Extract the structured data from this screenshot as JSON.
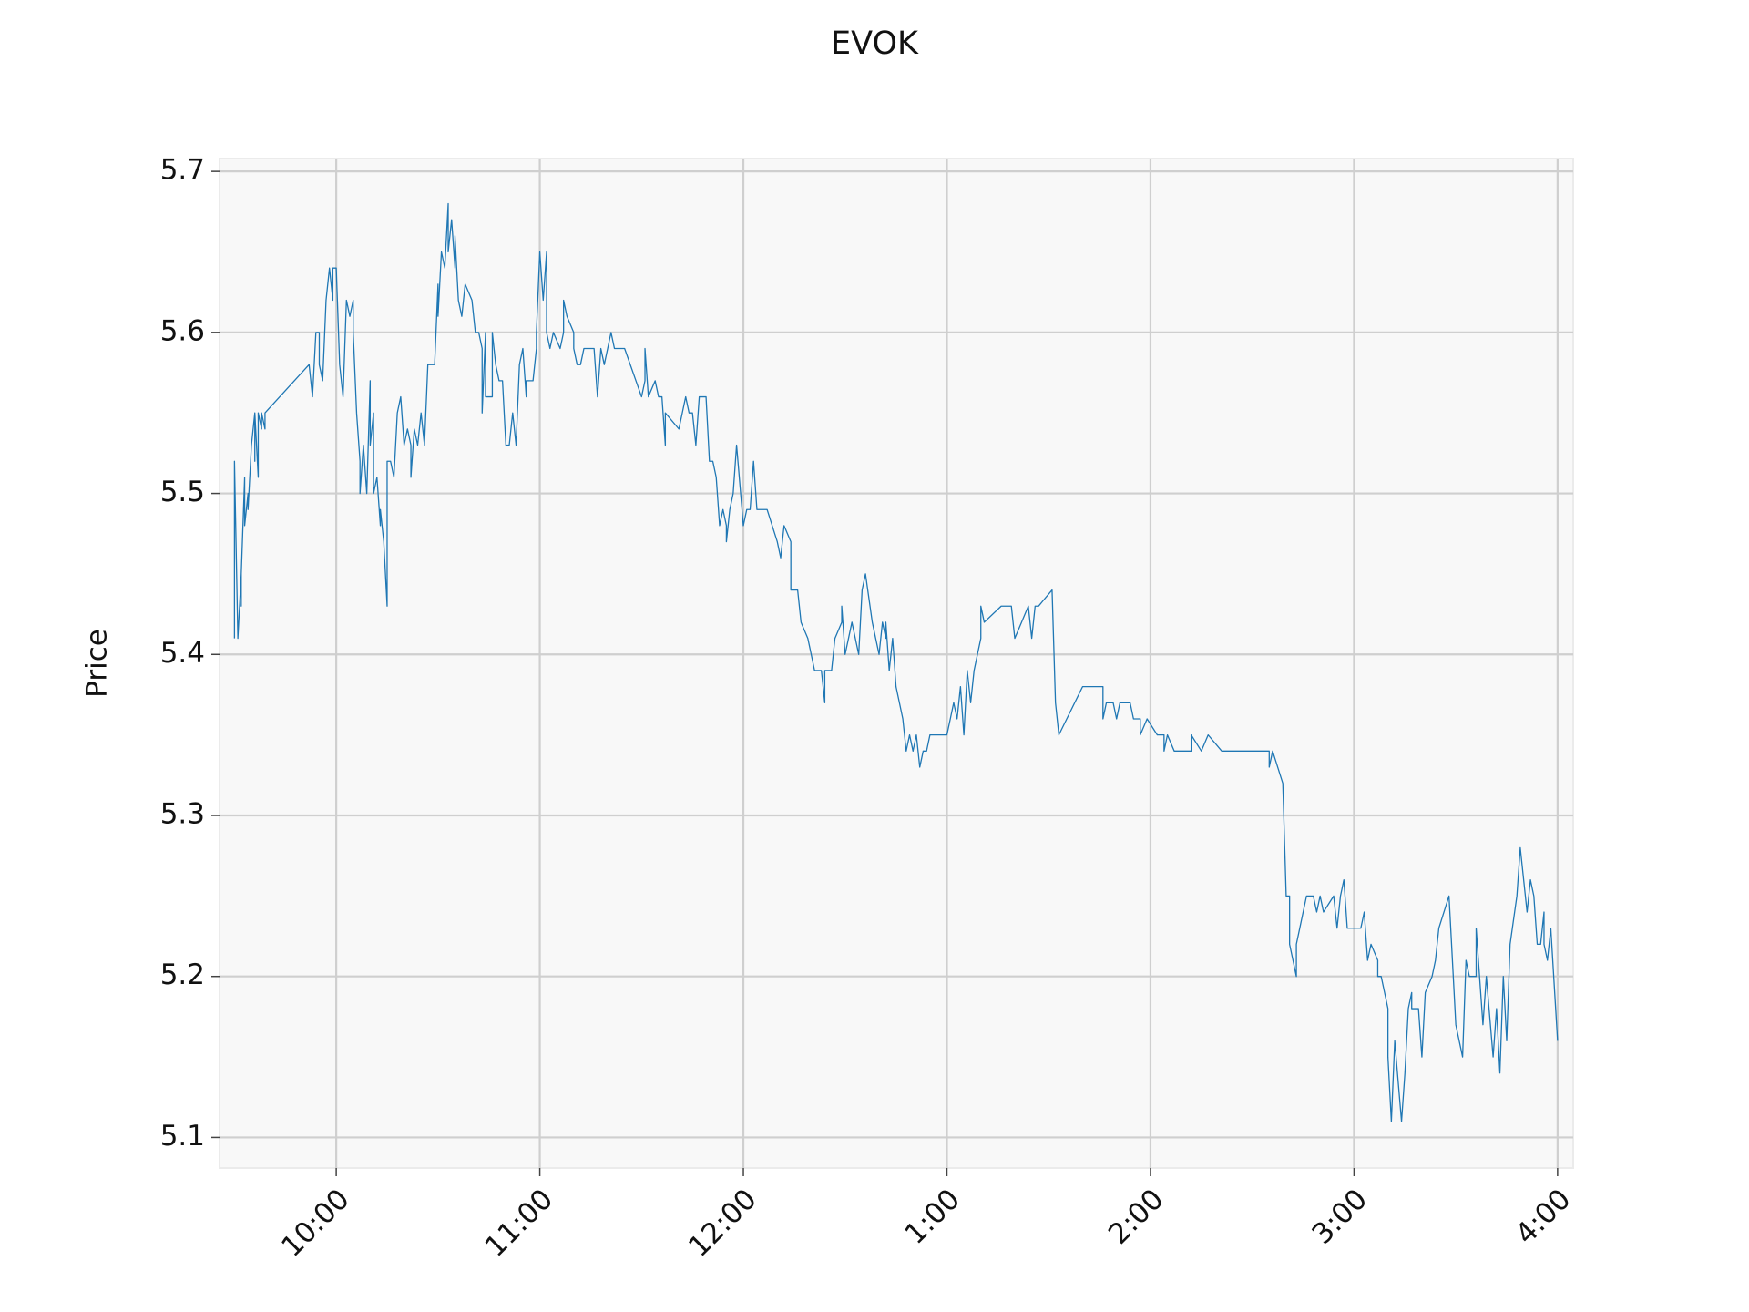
{
  "chart_data": {
    "type": "line",
    "title": "EVOK",
    "ylabel": "Price",
    "color": "#1f77b4",
    "grid": true,
    "xlim": [
      565.6,
      964.6
    ],
    "ylim": [
      5.081,
      5.708
    ],
    "xticks": [
      {
        "value": 600,
        "label": "10:00"
      },
      {
        "value": 660,
        "label": "11:00"
      },
      {
        "value": 720,
        "label": "12:00"
      },
      {
        "value": 780,
        "label": "1:00"
      },
      {
        "value": 840,
        "label": "2:00"
      },
      {
        "value": 900,
        "label": "3:00"
      },
      {
        "value": 960,
        "label": "4:00"
      }
    ],
    "yticks": [
      5.1,
      5.2,
      5.3,
      5.4,
      5.5,
      5.6,
      5.7
    ],
    "x": [
      570,
      570,
      571,
      572,
      572,
      572,
      573,
      573,
      574,
      574,
      575,
      576,
      576,
      576,
      577,
      577,
      578,
      578,
      579,
      579,
      592,
      593,
      594,
      595,
      595,
      596,
      597,
      598,
      599,
      599,
      600,
      601,
      602,
      603,
      604,
      605,
      605,
      606,
      607,
      607,
      608,
      609,
      610,
      610,
      611,
      611,
      612,
      613,
      613,
      614,
      615,
      615,
      616,
      617,
      618,
      619,
      620,
      621,
      622,
      622,
      623,
      624,
      625,
      626,
      627,
      629,
      630,
      630,
      631,
      632,
      633,
      633,
      634,
      635,
      635,
      636,
      637,
      638,
      640,
      641,
      642,
      643,
      643,
      644,
      644,
      646,
      646,
      647,
      648,
      649,
      650,
      651,
      652,
      653,
      654,
      655,
      656,
      656,
      658,
      659,
      659,
      660,
      661,
      662,
      662,
      663,
      664,
      666,
      667,
      667,
      668,
      670,
      670,
      671,
      672,
      673,
      676,
      677,
      678,
      679,
      680,
      681,
      682,
      685,
      690,
      691,
      691,
      692,
      694,
      695,
      696,
      697,
      697,
      701,
      702,
      703,
      704,
      705,
      706,
      707,
      709,
      710,
      711,
      712,
      713,
      714,
      715,
      715,
      716,
      717,
      718,
      720,
      721,
      722,
      723,
      724,
      727,
      730,
      731,
      732,
      734,
      734,
      736,
      737,
      739,
      740,
      741,
      743,
      744,
      744,
      746,
      747,
      749,
      749,
      750,
      750,
      752,
      753,
      754,
      755,
      756,
      758,
      760,
      761,
      762,
      762,
      763,
      764,
      765,
      766,
      767,
      768,
      769,
      770,
      771,
      772,
      773,
      774,
      775,
      780,
      781,
      782,
      783,
      784,
      785,
      786,
      787,
      788,
      789,
      790,
      790,
      791,
      796,
      799,
      800,
      802,
      804,
      805,
      806,
      807,
      811,
      812,
      813,
      820,
      826,
      826,
      827,
      829,
      830,
      831,
      834,
      835,
      837,
      837,
      839,
      842,
      844,
      844,
      845,
      847,
      852,
      852,
      855,
      857,
      861,
      875,
      875,
      876,
      879,
      880,
      881,
      881,
      882,
      883,
      883,
      884,
      885,
      886,
      888,
      889,
      890,
      891,
      894,
      895,
      896,
      897,
      898,
      902,
      903,
      904,
      905,
      907,
      907,
      908,
      910,
      910,
      911,
      912,
      914,
      915,
      916,
      917,
      917,
      919,
      920,
      920,
      921,
      923,
      924,
      925,
      928,
      930,
      932,
      933,
      934,
      936,
      936,
      938,
      939,
      941,
      942,
      943,
      944,
      945,
      946,
      948,
      949,
      951,
      952,
      953,
      954,
      955,
      956,
      956,
      957,
      958,
      960
    ],
    "values": [
      5.41,
      5.52,
      5.41,
      5.45,
      5.43,
      5.45,
      5.51,
      5.48,
      5.5,
      5.49,
      5.53,
      5.55,
      5.52,
      5.55,
      5.51,
      5.55,
      5.54,
      5.55,
      5.54,
      5.55,
      5.58,
      5.56,
      5.6,
      5.6,
      5.58,
      5.57,
      5.62,
      5.64,
      5.62,
      5.64,
      5.64,
      5.58,
      5.56,
      5.62,
      5.61,
      5.62,
      5.6,
      5.55,
      5.52,
      5.5,
      5.53,
      5.5,
      5.57,
      5.53,
      5.55,
      5.5,
      5.51,
      5.48,
      5.49,
      5.47,
      5.43,
      5.52,
      5.52,
      5.51,
      5.55,
      5.56,
      5.53,
      5.54,
      5.53,
      5.51,
      5.54,
      5.53,
      5.55,
      5.53,
      5.58,
      5.58,
      5.63,
      5.61,
      5.65,
      5.64,
      5.68,
      5.65,
      5.67,
      5.64,
      5.66,
      5.62,
      5.61,
      5.63,
      5.62,
      5.6,
      5.6,
      5.59,
      5.55,
      5.6,
      5.56,
      5.56,
      5.6,
      5.58,
      5.57,
      5.57,
      5.53,
      5.53,
      5.55,
      5.53,
      5.58,
      5.59,
      5.56,
      5.57,
      5.57,
      5.59,
      5.6,
      5.65,
      5.62,
      5.65,
      5.6,
      5.59,
      5.6,
      5.59,
      5.6,
      5.62,
      5.61,
      5.6,
      5.59,
      5.58,
      5.58,
      5.59,
      5.59,
      5.56,
      5.59,
      5.58,
      5.59,
      5.6,
      5.59,
      5.59,
      5.56,
      5.57,
      5.59,
      5.56,
      5.57,
      5.56,
      5.56,
      5.53,
      5.55,
      5.54,
      5.55,
      5.56,
      5.55,
      5.55,
      5.53,
      5.56,
      5.56,
      5.52,
      5.52,
      5.51,
      5.48,
      5.49,
      5.48,
      5.47,
      5.49,
      5.5,
      5.53,
      5.48,
      5.49,
      5.49,
      5.52,
      5.49,
      5.49,
      5.47,
      5.46,
      5.48,
      5.47,
      5.44,
      5.44,
      5.42,
      5.41,
      5.4,
      5.39,
      5.39,
      5.37,
      5.39,
      5.39,
      5.41,
      5.42,
      5.43,
      5.4,
      5.4,
      5.42,
      5.41,
      5.4,
      5.44,
      5.45,
      5.42,
      5.4,
      5.42,
      5.41,
      5.42,
      5.39,
      5.41,
      5.38,
      5.37,
      5.36,
      5.34,
      5.35,
      5.34,
      5.35,
      5.33,
      5.34,
      5.34,
      5.35,
      5.35,
      5.36,
      5.37,
      5.36,
      5.38,
      5.35,
      5.39,
      5.37,
      5.39,
      5.4,
      5.41,
      5.43,
      5.42,
      5.43,
      5.43,
      5.41,
      5.42,
      5.43,
      5.41,
      5.43,
      5.43,
      5.44,
      5.37,
      5.35,
      5.38,
      5.38,
      5.36,
      5.37,
      5.37,
      5.36,
      5.37,
      5.37,
      5.36,
      5.36,
      5.35,
      5.36,
      5.35,
      5.35,
      5.34,
      5.35,
      5.34,
      5.34,
      5.35,
      5.34,
      5.35,
      5.34,
      5.34,
      5.33,
      5.34,
      5.32,
      5.25,
      5.25,
      5.22,
      5.21,
      5.2,
      5.22,
      5.23,
      5.24,
      5.25,
      5.25,
      5.24,
      5.25,
      5.24,
      5.25,
      5.23,
      5.25,
      5.26,
      5.23,
      5.23,
      5.24,
      5.21,
      5.22,
      5.21,
      5.2,
      5.2,
      5.18,
      5.15,
      5.11,
      5.16,
      5.11,
      5.14,
      5.18,
      5.19,
      5.18,
      5.18,
      5.15,
      5.15,
      5.19,
      5.2,
      5.21,
      5.23,
      5.25,
      5.17,
      5.15,
      5.21,
      5.2,
      5.2,
      5.23,
      5.17,
      5.2,
      5.15,
      5.18,
      5.14,
      5.2,
      5.16,
      5.22,
      5.25,
      5.28,
      5.24,
      5.26,
      5.25,
      5.22,
      5.22,
      5.24,
      5.22,
      5.21,
      5.23,
      5.16
    ]
  }
}
